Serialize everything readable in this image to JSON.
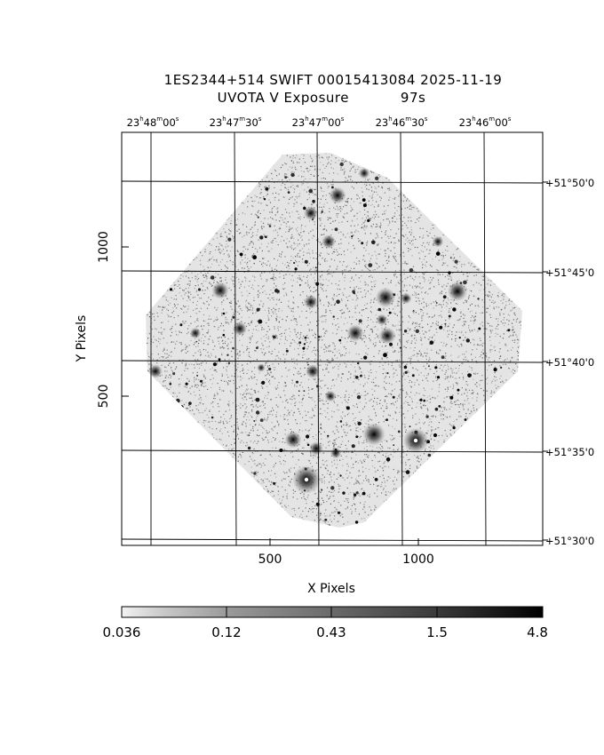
{
  "title": {
    "line1": "1ES2344+514 SWIFT 00015413084 2025-11-19",
    "line2": "UVOTA V Exposure           97s"
  },
  "axes": {
    "xlabel": "X Pixels",
    "ylabel": "Y Pixels",
    "x_ticks": [
      "500",
      "1000"
    ],
    "y_ticks": [
      "1000",
      "500"
    ]
  },
  "ra_ticks": [
    {
      "h": "23",
      "m": "48",
      "s": "00"
    },
    {
      "h": "23",
      "m": "47",
      "s": "30"
    },
    {
      "h": "23",
      "m": "47",
      "s": "00"
    },
    {
      "h": "23",
      "m": "46",
      "s": "30"
    },
    {
      "h": "23",
      "m": "46",
      "s": "00"
    }
  ],
  "dec_ticks": [
    "+51°50'0",
    "+51°45'0",
    "+51°40'0",
    "+51°35'0",
    "+51°30'0"
  ],
  "colorbar": {
    "ticks": [
      "0.036",
      "0.12",
      "0.43",
      "1.5",
      "4.8"
    ]
  },
  "colors": {
    "frame": "#000000",
    "noise": "#8a8a8a",
    "background": "#ffffff"
  }
}
